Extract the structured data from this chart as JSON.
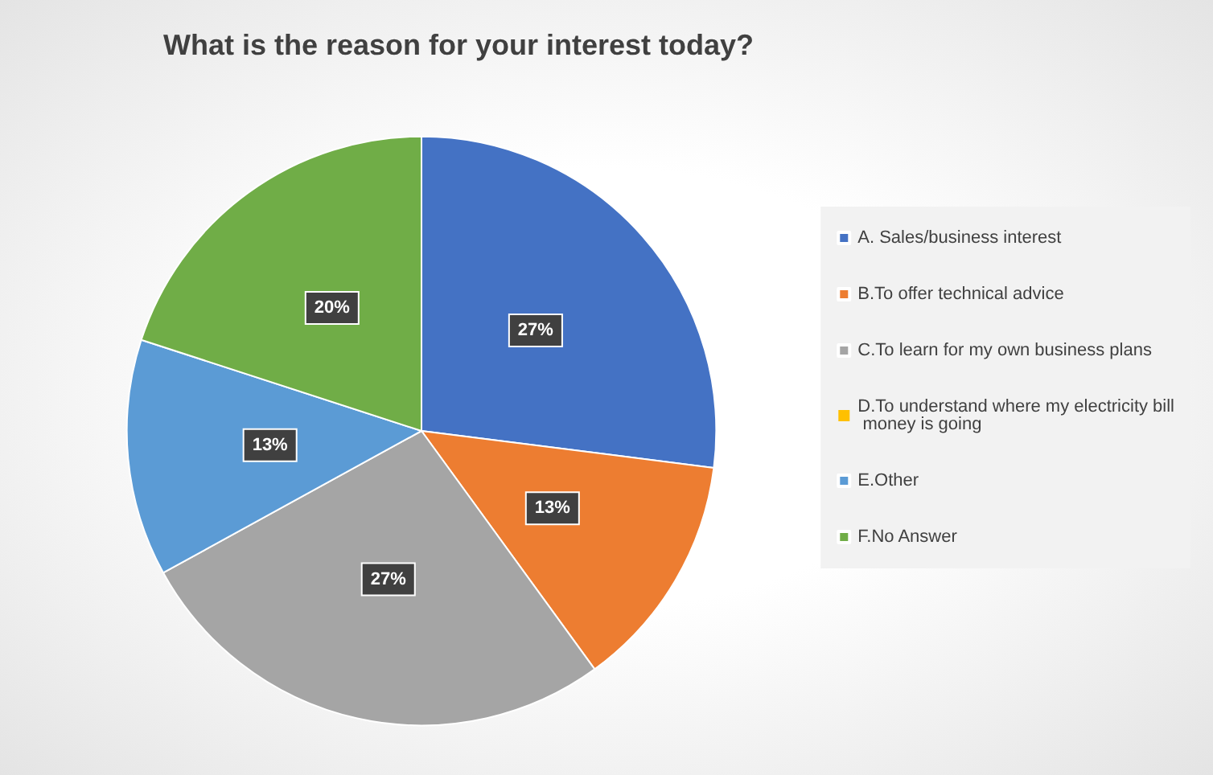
{
  "chart_data": {
    "type": "pie",
    "title": "What is the reason for your interest today?",
    "categories": [
      "A. Sales/business interest",
      "B.To offer technical advice",
      "C.To learn for my own business plans",
      "D.To understand where my electricity bill money is going",
      "E.Other",
      "F.No Answer"
    ],
    "values": [
      27,
      13,
      27,
      0,
      13,
      20
    ],
    "colors": [
      "#4472c4",
      "#ed7d31",
      "#a5a5a5",
      "#ffc000",
      "#5b9bd5",
      "#70ad47"
    ],
    "value_labels": [
      "27%",
      "13%",
      "27%",
      null,
      "13%",
      "20%"
    ],
    "legend": "right"
  }
}
